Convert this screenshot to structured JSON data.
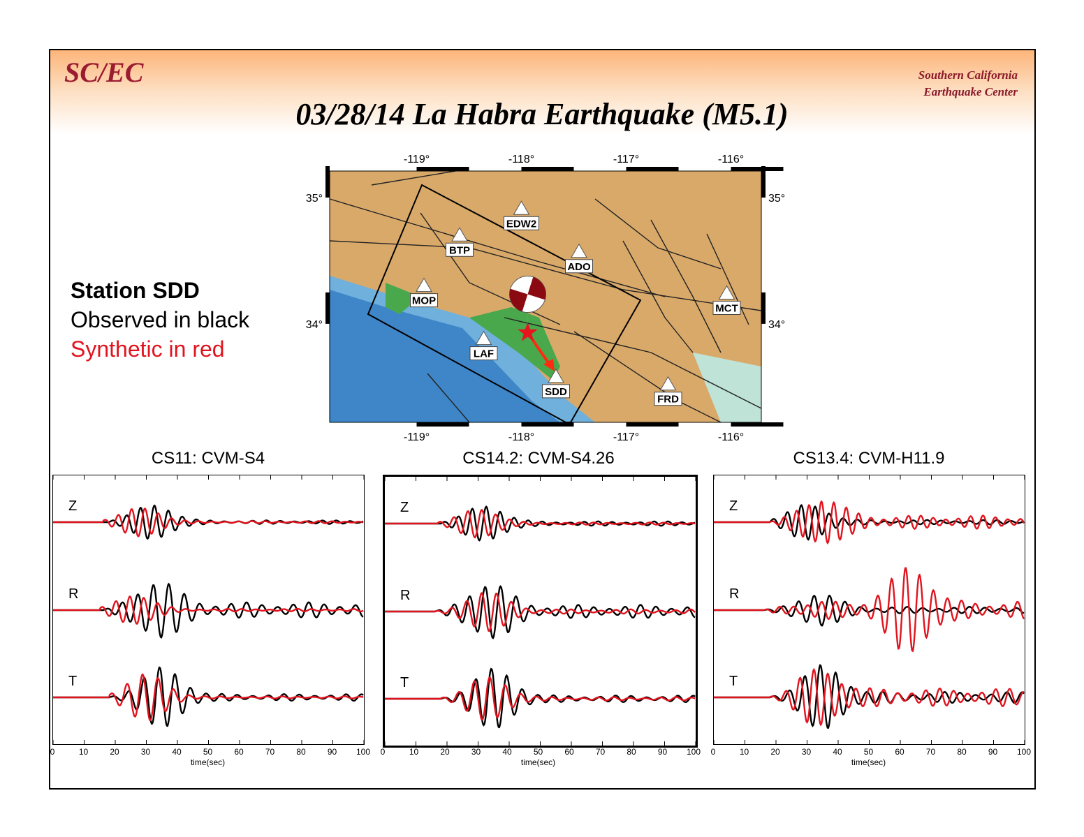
{
  "header": {
    "logo": "SC/EC",
    "org_line1": "Southern California",
    "org_line2": "Earthquake Center",
    "title": "03/28/14 La Habra Earthquake (M5.1)"
  },
  "legend": {
    "station": "Station SDD",
    "observed": "Observed in black",
    "synthetic": "Synthetic in red"
  },
  "colors": {
    "observed": "#000000",
    "synthetic": "#e0141e",
    "logo": "#9b1b30"
  },
  "map": {
    "lon_range": [
      -119.83,
      -115.71
    ],
    "lat_range": [
      33.22,
      35.21
    ],
    "lon_ticks": [
      "-119°",
      "-118°",
      "-117°",
      "-116°"
    ],
    "lon_tick_values": [
      -119,
      -118,
      -117,
      -116
    ],
    "lat_ticks": [
      "35°",
      "34°"
    ],
    "lat_tick_values": [
      35,
      34
    ],
    "stations": [
      {
        "name": "EDW2",
        "lon": -118.0,
        "lat": 34.91
      },
      {
        "name": "BTP",
        "lon": -118.59,
        "lat": 34.7
      },
      {
        "name": "ADO",
        "lon": -117.45,
        "lat": 34.57
      },
      {
        "name": "MOP",
        "lon": -118.93,
        "lat": 34.3
      },
      {
        "name": "MCT",
        "lon": -116.04,
        "lat": 34.24
      },
      {
        "name": "LAF",
        "lon": -118.36,
        "lat": 33.88
      },
      {
        "name": "SDD",
        "lon": -117.67,
        "lat": 33.58
      },
      {
        "name": "FRD",
        "lon": -116.6,
        "lat": 33.52
      }
    ],
    "epicenter": {
      "lon": -117.94,
      "lat": 33.93
    }
  },
  "chart_data": [
    {
      "type": "line",
      "title": "CS11: CVM-S4",
      "xlabel": "time(sec)",
      "xlim": [
        0,
        100
      ],
      "x_ticks": [
        "0",
        "10",
        "20",
        "30",
        "40",
        "50",
        "60",
        "70",
        "80",
        "90",
        "100"
      ],
      "traces": [
        "Z",
        "R",
        "T"
      ],
      "series": [
        {
          "trace": "Z",
          "name": "observed",
          "onset": 18,
          "period": 4.5,
          "peak": 0.7,
          "peak_t": 32,
          "coda": 0.08
        },
        {
          "trace": "Z",
          "name": "synthetic",
          "onset": 16,
          "period": 4.3,
          "peak": 0.6,
          "peak_t": 28,
          "coda": 0.05
        },
        {
          "trace": "R",
          "name": "observed",
          "onset": 16,
          "period": 5,
          "peak": 1.0,
          "peak_t": 34,
          "coda": 0.35
        },
        {
          "trace": "R",
          "name": "synthetic",
          "onset": 15,
          "period": 4.5,
          "peak": 0.6,
          "peak_t": 26,
          "coda": 0.06
        },
        {
          "trace": "T",
          "name": "observed",
          "onset": 18,
          "period": 5,
          "peak": 1.2,
          "peak_t": 35,
          "coda": 0.15
        },
        {
          "trace": "T",
          "name": "synthetic",
          "onset": 18,
          "period": 5,
          "peak": 1.0,
          "peak_t": 30,
          "coda": 0.05
        }
      ]
    },
    {
      "type": "line",
      "title": "CS14.2: CVM-S4.26",
      "xlabel": "time(sec)",
      "xlim": [
        0,
        100
      ],
      "x_ticks": [
        "0",
        "10",
        "20",
        "30",
        "40",
        "50",
        "60",
        "70",
        "80",
        "90",
        "100"
      ],
      "traces": [
        "Z",
        "R",
        "T"
      ],
      "series": [
        {
          "trace": "Z",
          "name": "observed",
          "onset": 18,
          "period": 4.5,
          "peak": 0.7,
          "peak_t": 32,
          "coda": 0.1
        },
        {
          "trace": "Z",
          "name": "synthetic",
          "onset": 17,
          "period": 4.5,
          "peak": 0.6,
          "peak_t": 30,
          "coda": 0.05
        },
        {
          "trace": "R",
          "name": "observed",
          "onset": 16,
          "period": 5,
          "peak": 1.0,
          "peak_t": 34,
          "coda": 0.3
        },
        {
          "trace": "R",
          "name": "synthetic",
          "onset": 16,
          "period": 4.8,
          "peak": 0.8,
          "peak_t": 33,
          "coda": 0.1
        },
        {
          "trace": "T",
          "name": "observed",
          "onset": 18,
          "period": 5,
          "peak": 1.2,
          "peak_t": 35,
          "coda": 0.15
        },
        {
          "trace": "T",
          "name": "synthetic",
          "onset": 18,
          "period": 5,
          "peak": 0.9,
          "peak_t": 33,
          "coda": 0.08
        }
      ]
    },
    {
      "type": "line",
      "title": "CS13.4: CVM-H11.9",
      "xlabel": "time(sec)",
      "xlim": [
        0,
        100
      ],
      "x_ticks": [
        "0",
        "10",
        "20",
        "30",
        "40",
        "50",
        "60",
        "70",
        "80",
        "90",
        "100"
      ],
      "traces": [
        "Z",
        "R",
        "T"
      ],
      "series": [
        {
          "trace": "Z",
          "name": "observed",
          "onset": 18,
          "period": 4.5,
          "peak": 0.7,
          "peak_t": 30,
          "coda": 0.1
        },
        {
          "trace": "Z",
          "name": "synthetic",
          "onset": 18,
          "period": 4,
          "peak": 0.8,
          "peak_t": 35,
          "coda": 0.3
        },
        {
          "trace": "R",
          "name": "observed",
          "onset": 16,
          "period": 5,
          "peak": 0.6,
          "peak_t": 34,
          "coda": 0.15
        },
        {
          "trace": "R",
          "name": "synthetic",
          "onset": 16,
          "period": 4.5,
          "peak": 1.6,
          "peak_t": 63,
          "coda": 0.4
        },
        {
          "trace": "T",
          "name": "observed",
          "onset": 18,
          "period": 5,
          "peak": 1.2,
          "peak_t": 35,
          "coda": 0.25
        },
        {
          "trace": "T",
          "name": "synthetic",
          "onset": 18,
          "period": 4.5,
          "peak": 0.9,
          "peak_t": 34,
          "coda": 0.4
        }
      ]
    }
  ]
}
